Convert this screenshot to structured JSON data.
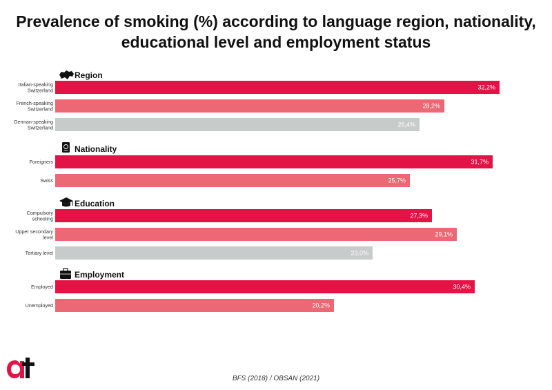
{
  "title_lines": [
    "Prevalence of smoking (%) according to language region, nationality,",
    "educational level and employment status"
  ],
  "source": "BFS (2018) / OBSAN (2021)",
  "colors": {
    "primary": "#e31346",
    "secondary": "#ec6874",
    "neutral": "#c7cbc9",
    "text": "#111111"
  },
  "chart_data": {
    "type": "bar",
    "orientation": "horizontal",
    "unit": "%",
    "groups": [
      {
        "title": "Region",
        "icon": "switzerland-map-icon",
        "bars": [
          {
            "label": [
              "Italian-speaking",
              "Switzerland"
            ],
            "value": 32.2,
            "value_label": "32,2%",
            "color": "primary"
          },
          {
            "label": [
              "French-speaking",
              "Switzerland"
            ],
            "value": 28.2,
            "value_label": "28,2%",
            "color": "secondary"
          },
          {
            "label": [
              "German-speaking",
              "Switzerland"
            ],
            "value": 26.4,
            "value_label": "26,4%",
            "color": "neutral"
          }
        ]
      },
      {
        "title": "Nationality",
        "icon": "passport-icon",
        "bars": [
          {
            "label": [
              "Foreigners"
            ],
            "value": 31.7,
            "value_label": "31,7%",
            "color": "primary"
          },
          {
            "label": [
              "Swiss"
            ],
            "value": 25.7,
            "value_label": "25,7%",
            "color": "secondary"
          }
        ]
      },
      {
        "title": "Education",
        "icon": "graduation-cap-icon",
        "bars": [
          {
            "label": [
              "Compulsory",
              "schooling"
            ],
            "value": 27.3,
            "value_label": "27,3%",
            "color": "primary"
          },
          {
            "label": [
              "Upper secondary",
              "level"
            ],
            "value": 29.1,
            "value_label": "29,1%",
            "color": "secondary"
          },
          {
            "label": [
              "Tertiary level"
            ],
            "value": 23.0,
            "value_label": "23,0%",
            "color": "neutral"
          }
        ]
      },
      {
        "title": "Employment",
        "icon": "briefcase-icon",
        "bars": [
          {
            "label": [
              "Employed"
            ],
            "value": 30.4,
            "value_label": "30,4%",
            "color": "primary"
          },
          {
            "label": [
              "Unemployed"
            ],
            "value": 20.2,
            "value_label": "20,2%",
            "color": "secondary"
          }
        ]
      }
    ]
  }
}
